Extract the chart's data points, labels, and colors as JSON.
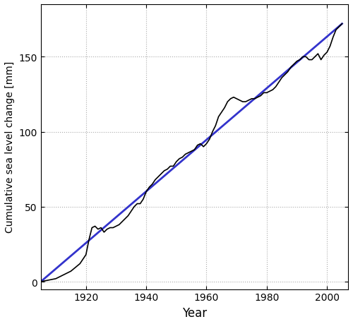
{
  "title": "",
  "xlabel": "Year",
  "ylabel": "Cumulative sea level change [mm]",
  "xlim": [
    1905,
    2007
  ],
  "ylim": [
    -5,
    185
  ],
  "yticks": [
    0,
    50,
    100,
    150
  ],
  "xticks": [
    1920,
    1940,
    1960,
    1980,
    2000
  ],
  "background_color": "#ffffff",
  "grid_color": "#aaaaaa",
  "black_line_color": "#000000",
  "blue_line_color": "#3333cc",
  "black_data": {
    "years": [
      1905,
      1910,
      1912,
      1915,
      1918,
      1920,
      1921,
      1922,
      1923,
      1924,
      1925,
      1926,
      1927,
      1928,
      1929,
      1930,
      1931,
      1932,
      1933,
      1934,
      1935,
      1936,
      1937,
      1938,
      1939,
      1940,
      1941,
      1942,
      1943,
      1944,
      1945,
      1946,
      1947,
      1948,
      1949,
      1950,
      1951,
      1952,
      1953,
      1954,
      1955,
      1956,
      1957,
      1958,
      1959,
      1960,
      1961,
      1962,
      1963,
      1964,
      1965,
      1966,
      1967,
      1968,
      1969,
      1970,
      1971,
      1972,
      1973,
      1974,
      1975,
      1976,
      1977,
      1978,
      1979,
      1980,
      1981,
      1982,
      1983,
      1984,
      1985,
      1986,
      1987,
      1988,
      1989,
      1990,
      1991,
      1992,
      1993,
      1994,
      1995,
      1996,
      1997,
      1998,
      1999,
      2000,
      2001,
      2002,
      2003,
      2004,
      2005
    ],
    "values": [
      0,
      2,
      4,
      7,
      12,
      18,
      28,
      36,
      37,
      35,
      36,
      33,
      35,
      36,
      36,
      37,
      38,
      40,
      42,
      44,
      47,
      50,
      52,
      52,
      55,
      60,
      63,
      65,
      68,
      70,
      72,
      74,
      75,
      77,
      77,
      80,
      82,
      83,
      85,
      86,
      87,
      88,
      91,
      92,
      90,
      92,
      95,
      100,
      104,
      110,
      113,
      116,
      120,
      122,
      123,
      122,
      121,
      120,
      120,
      121,
      122,
      122,
      123,
      124,
      126,
      126,
      127,
      128,
      130,
      133,
      136,
      138,
      140,
      143,
      145,
      147,
      148,
      150,
      150,
      148,
      148,
      150,
      152,
      148,
      151,
      153,
      157,
      163,
      168,
      170,
      172
    ]
  },
  "blue_data": {
    "years": [
      1905,
      2005
    ],
    "values": [
      0,
      172
    ]
  }
}
